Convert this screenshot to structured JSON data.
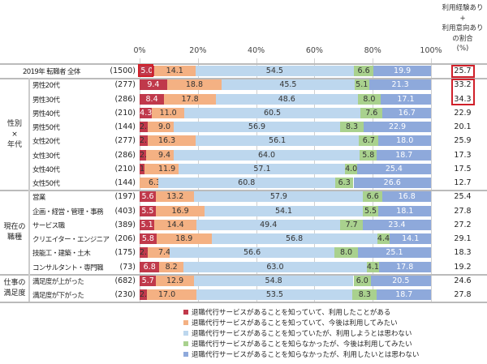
{
  "chart_data": {
    "type": "bar",
    "orientation": "horizontal-stacked-100",
    "x_ticks": [
      "0%",
      "20%",
      "40%",
      "60%",
      "80%",
      "100%"
    ],
    "xlim": [
      0,
      100
    ],
    "right_column_header": [
      "利用経験あり",
      "+",
      "利用意向あり",
      "の割合",
      "(%)"
    ],
    "series": [
      {
        "name": "退職代行サービスがあることを知っていて、利用したことがある",
        "color": "#c0394b"
      },
      {
        "name": "退職代行サービスがあることを知っていて、今後は利用してみたい",
        "color": "#f4b183"
      },
      {
        "name": "退職代行サービスがあることを知っていたが、利用しようとは思わない",
        "color": "#bdd7ee"
      },
      {
        "name": "退職代行サービスがあることを知らなかったが、今後は利用してみたい",
        "color": "#a9d18e"
      },
      {
        "name": "退職代行サービスがあることを知らなかったが、利用したいとは思わない",
        "color": "#8ea9db"
      }
    ],
    "groups": [
      {
        "label": "",
        "rows": [
          {
            "name": "2019年 転職者 全体",
            "n": "(1500)",
            "values": [
              5.0,
              14.1,
              54.5,
              6.6,
              19.9
            ],
            "total": "25.7"
          }
        ]
      },
      {
        "label": "性別\n×\n年代",
        "rows": [
          {
            "name": "男性20代",
            "n": "(277)",
            "values": [
              9.4,
              18.8,
              45.5,
              5.1,
              21.3
            ],
            "total": "33.2"
          },
          {
            "name": "男性30代",
            "n": "(286)",
            "values": [
              8.4,
              17.8,
              48.6,
              8.0,
              17.1
            ],
            "total": "34.3"
          },
          {
            "name": "男性40代",
            "n": "(210)",
            "values": [
              4.3,
              11.0,
              60.5,
              7.6,
              16.7
            ],
            "total": "22.9"
          },
          {
            "name": "男性50代",
            "n": "(144)",
            "values": [
              2.8,
              9.0,
              56.9,
              8.3,
              22.9
            ],
            "total": "20.1"
          },
          {
            "name": "女性20代",
            "n": "(277)",
            "values": [
              2.9,
              16.3,
              56.1,
              6.7,
              18.0
            ],
            "total": "25.9"
          },
          {
            "name": "女性30代",
            "n": "(286)",
            "values": [
              2.2,
              9.4,
              64.0,
              5.8,
              18.7
            ],
            "total": "17.3"
          },
          {
            "name": "女性40代",
            "n": "(210)",
            "values": [
              1.6,
              11.9,
              57.1,
              4.0,
              25.4
            ],
            "total": "17.5"
          },
          {
            "name": "女性50代",
            "n": "(144)",
            "values": [
              0,
              6.3,
              60.8,
              6.3,
              26.6
            ],
            "labels0": "-",
            "total": "12.7"
          }
        ]
      },
      {
        "label": "現在の\n職種",
        "rows": [
          {
            "name": "営業",
            "n": "(197)",
            "values": [
              5.6,
              13.2,
              57.9,
              6.6,
              16.8
            ],
            "total": "25.4"
          },
          {
            "name": "企画・経営・管理・事務",
            "n": "(403)",
            "values": [
              5.5,
              16.9,
              54.1,
              5.5,
              18.1
            ],
            "total": "27.8"
          },
          {
            "name": "サービス職",
            "n": "(389)",
            "values": [
              5.1,
              14.4,
              49.4,
              7.7,
              23.4
            ],
            "total": "27.2"
          },
          {
            "name": "クリエイター・エンジニア",
            "n": "(206)",
            "values": [
              5.8,
              18.9,
              56.8,
              4.4,
              14.1
            ],
            "total": "29.1"
          },
          {
            "name": "技能工・建築・土木",
            "n": "(175)",
            "values": [
              2.9,
              7.4,
              56.6,
              8.0,
              25.1
            ],
            "total": "18.3"
          },
          {
            "name": "コンサルタント・専門職",
            "n": "(73)",
            "values": [
              6.8,
              8.2,
              63.0,
              4.1,
              17.8
            ],
            "total": "19.2"
          }
        ]
      },
      {
        "label": "仕事の\n満足度",
        "rows": [
          {
            "name": "満足度が上がった",
            "n": "(682)",
            "values": [
              5.7,
              12.9,
              54.8,
              6.0,
              20.5
            ],
            "total": "24.6"
          },
          {
            "name": "満足度が下がった",
            "n": "(230)",
            "values": [
              2.6,
              17.0,
              53.5,
              8.3,
              18.7
            ],
            "total": "27.8"
          }
        ]
      }
    ]
  }
}
